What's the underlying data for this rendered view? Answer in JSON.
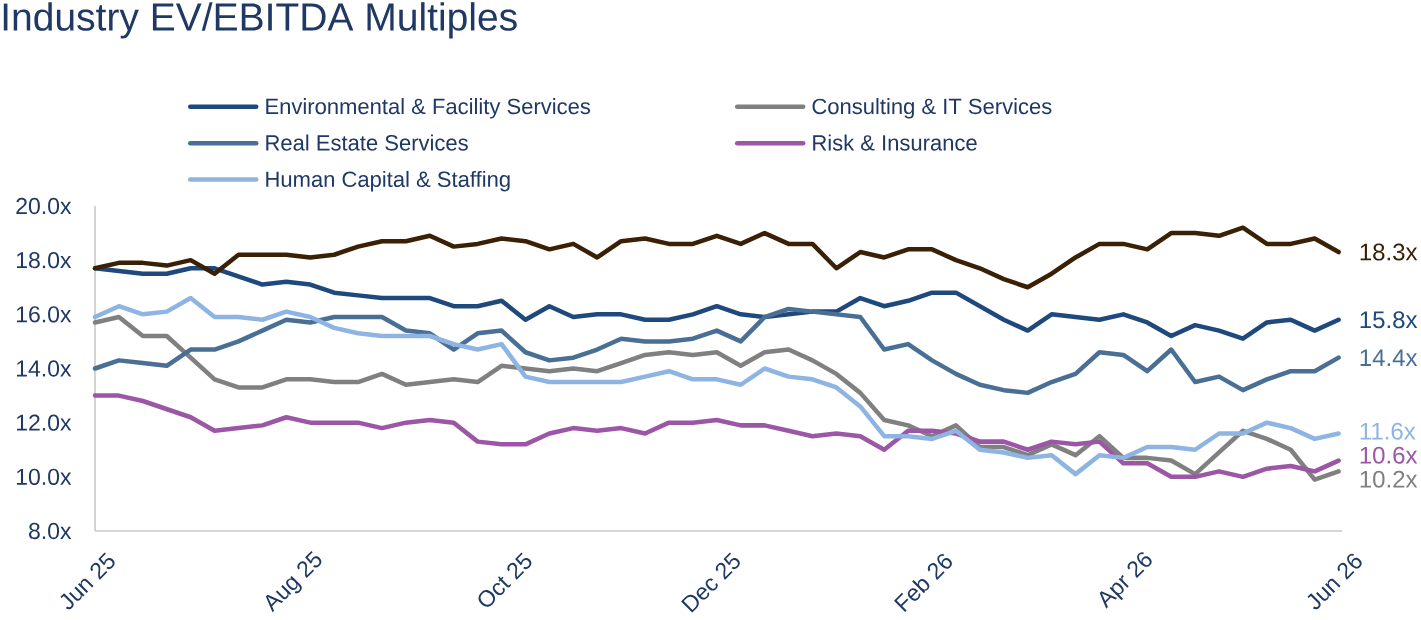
{
  "chart_data": {
    "type": "line",
    "title": "Industry EV/EBITDA Multiples",
    "x": [
      "2025-06-01",
      "2025-06-08",
      "2025-06-15",
      "2025-06-22",
      "2025-06-29",
      "2025-07-06",
      "2025-07-13",
      "2025-07-20",
      "2025-07-27",
      "2025-08-03",
      "2025-08-10",
      "2025-08-17",
      "2025-08-24",
      "2025-08-31",
      "2025-09-07",
      "2025-09-14",
      "2025-09-21",
      "2025-09-28",
      "2025-10-05",
      "2025-10-12",
      "2025-10-19",
      "2025-10-26",
      "2025-11-02",
      "2025-11-09",
      "2025-11-16",
      "2025-11-23",
      "2025-11-30",
      "2025-12-07",
      "2025-12-14",
      "2025-12-21",
      "2025-12-28",
      "2026-01-04",
      "2026-01-11",
      "2026-01-18",
      "2026-01-25",
      "2026-02-01",
      "2026-02-08",
      "2026-02-15",
      "2026-02-22",
      "2026-03-01",
      "2026-03-08",
      "2026-03-15",
      "2026-03-22",
      "2026-03-29",
      "2026-04-05",
      "2026-04-12",
      "2026-04-19",
      "2026-04-26",
      "2026-05-03",
      "2026-05-10",
      "2026-05-17",
      "2026-05-24",
      "2026-05-31"
    ],
    "series": [
      {
        "name": "Environmental & Facility Services",
        "color": "#1F497D",
        "values": [
          17.7,
          17.6,
          17.5,
          17.5,
          17.7,
          17.7,
          17.4,
          17.1,
          17.2,
          17.1,
          16.8,
          16.7,
          16.6,
          16.6,
          16.6,
          16.3,
          16.3,
          16.5,
          15.8,
          16.3,
          15.9,
          16.0,
          16.0,
          15.8,
          15.8,
          16.0,
          16.3,
          16.0,
          15.9,
          16.0,
          16.1,
          16.1,
          16.6,
          16.3,
          16.5,
          16.8,
          16.8,
          16.3,
          15.8,
          15.4,
          16.0,
          15.9,
          15.8,
          16.0,
          15.7,
          15.2,
          15.6,
          15.4,
          15.1,
          15.7,
          15.8,
          15.4,
          15.8
        ],
        "value_labels": [
          null,
          null,
          null,
          null,
          null,
          null,
          null,
          null,
          null,
          null,
          null,
          null,
          null,
          null,
          null,
          null,
          null,
          null,
          null,
          null,
          null,
          null,
          null,
          null,
          null,
          null,
          null,
          null,
          null,
          null,
          null,
          null,
          null,
          null,
          null,
          null,
          null,
          null,
          null,
          null,
          null,
          null,
          null,
          null,
          null,
          null,
          null,
          null,
          null,
          null,
          null,
          null,
          "15.8x"
        ]
      },
      {
        "name": "Consulting & IT Services",
        "color": "#808080",
        "values": [
          15.7,
          15.9,
          15.2,
          15.2,
          14.4,
          13.6,
          13.3,
          13.3,
          13.6,
          13.6,
          13.5,
          13.5,
          13.8,
          13.4,
          13.5,
          13.6,
          13.5,
          14.1,
          14.0,
          13.9,
          14.0,
          13.9,
          14.2,
          14.5,
          14.6,
          14.5,
          14.6,
          14.1,
          14.6,
          14.7,
          14.3,
          13.8,
          13.1,
          12.1,
          11.9,
          11.5,
          11.9,
          11.1,
          11.1,
          10.8,
          11.2,
          10.8,
          11.5,
          10.7,
          10.7,
          10.6,
          10.1,
          10.9,
          11.7,
          11.4,
          11.0,
          9.9,
          10.2
        ],
        "value_labels": [
          null,
          null,
          null,
          null,
          null,
          null,
          null,
          null,
          null,
          null,
          null,
          null,
          null,
          null,
          null,
          null,
          null,
          null,
          null,
          null,
          null,
          null,
          null,
          null,
          null,
          null,
          null,
          null,
          null,
          null,
          null,
          null,
          null,
          null,
          null,
          null,
          null,
          null,
          null,
          null,
          null,
          null,
          null,
          null,
          null,
          null,
          null,
          null,
          null,
          null,
          null,
          null,
          "10.2x"
        ]
      },
      {
        "name": "Real Estate Services",
        "color": "#4A6F94",
        "values": [
          14.0,
          14.3,
          14.2,
          14.1,
          14.7,
          14.7,
          15.0,
          15.4,
          15.8,
          15.7,
          15.9,
          15.9,
          15.9,
          15.4,
          15.3,
          14.7,
          15.3,
          15.4,
          14.6,
          14.3,
          14.4,
          14.7,
          15.1,
          15.0,
          15.0,
          15.1,
          15.4,
          15.0,
          15.9,
          16.2,
          16.1,
          16.0,
          15.9,
          14.7,
          14.9,
          14.3,
          13.8,
          13.4,
          13.2,
          13.1,
          13.5,
          13.8,
          14.6,
          14.5,
          13.9,
          14.7,
          13.5,
          13.7,
          13.2,
          13.6,
          13.9,
          13.9,
          14.4
        ],
        "value_labels": [
          null,
          null,
          null,
          null,
          null,
          null,
          null,
          null,
          null,
          null,
          null,
          null,
          null,
          null,
          null,
          null,
          null,
          null,
          null,
          null,
          null,
          null,
          null,
          null,
          null,
          null,
          null,
          null,
          null,
          null,
          null,
          null,
          null,
          null,
          null,
          null,
          null,
          null,
          null,
          null,
          null,
          null,
          null,
          null,
          null,
          null,
          null,
          null,
          null,
          null,
          null,
          null,
          "14.4x"
        ]
      },
      {
        "name": "Risk & Insurance",
        "color": "#9B57A5",
        "values": [
          13.0,
          13.0,
          12.8,
          12.5,
          12.2,
          11.7,
          11.8,
          11.9,
          12.2,
          12.0,
          12.0,
          12.0,
          11.8,
          12.0,
          12.1,
          12.0,
          11.3,
          11.2,
          11.2,
          11.6,
          11.8,
          11.7,
          11.8,
          11.6,
          12.0,
          12.0,
          12.1,
          11.9,
          11.9,
          11.7,
          11.5,
          11.6,
          11.5,
          11.0,
          11.7,
          11.7,
          11.6,
          11.3,
          11.3,
          11.0,
          11.3,
          11.2,
          11.3,
          10.5,
          10.5,
          10.0,
          10.0,
          10.2,
          10.0,
          10.3,
          10.4,
          10.2,
          10.6
        ],
        "value_labels": [
          null,
          null,
          null,
          null,
          null,
          null,
          null,
          null,
          null,
          null,
          null,
          null,
          null,
          null,
          null,
          null,
          null,
          null,
          null,
          null,
          null,
          null,
          null,
          null,
          null,
          null,
          null,
          null,
          null,
          null,
          null,
          null,
          null,
          null,
          null,
          null,
          null,
          null,
          null,
          null,
          null,
          null,
          null,
          null,
          null,
          null,
          null,
          null,
          null,
          null,
          null,
          null,
          "10.6x"
        ]
      },
      {
        "name": "Human Capital & Staffing",
        "color": "#8EB4E3",
        "values": [
          15.9,
          16.3,
          16.0,
          16.1,
          16.6,
          15.9,
          15.9,
          15.8,
          16.1,
          15.9,
          15.5,
          15.3,
          15.2,
          15.2,
          15.2,
          14.9,
          14.7,
          14.9,
          13.7,
          13.5,
          13.5,
          13.5,
          13.5,
          13.7,
          13.9,
          13.6,
          13.6,
          13.4,
          14.0,
          13.7,
          13.6,
          13.3,
          12.6,
          11.5,
          11.5,
          11.4,
          11.7,
          11.0,
          10.9,
          10.7,
          10.8,
          10.1,
          10.8,
          10.7,
          11.1,
          11.1,
          11.0,
          11.6,
          11.6,
          12.0,
          11.8,
          11.4,
          11.6
        ],
        "value_labels": [
          null,
          null,
          null,
          null,
          null,
          null,
          null,
          null,
          null,
          null,
          null,
          null,
          null,
          null,
          null,
          null,
          null,
          null,
          null,
          null,
          null,
          null,
          null,
          null,
          null,
          null,
          null,
          null,
          null,
          null,
          null,
          null,
          null,
          null,
          null,
          null,
          null,
          null,
          null,
          null,
          null,
          null,
          null,
          null,
          null,
          null,
          null,
          null,
          null,
          null,
          null,
          null,
          "11.6x"
        ]
      },
      {
        "color": "#3A2005",
        "values": [
          17.7,
          17.9,
          17.9,
          17.8,
          18.0,
          17.5,
          18.2,
          18.2,
          18.2,
          18.1,
          18.2,
          18.5,
          18.7,
          18.7,
          18.9,
          18.5,
          18.6,
          18.8,
          18.7,
          18.4,
          18.6,
          18.1,
          18.7,
          18.8,
          18.6,
          18.6,
          18.9,
          18.6,
          19.0,
          18.6,
          18.6,
          17.7,
          18.3,
          18.1,
          18.4,
          18.4,
          18.0,
          17.7,
          17.3,
          17.0,
          17.5,
          18.1,
          18.6,
          18.6,
          18.4,
          19.0,
          19.0,
          18.9,
          19.2,
          18.6,
          18.6,
          18.8,
          18.3
        ],
        "value_labels": [
          null,
          null,
          null,
          null,
          null,
          null,
          null,
          null,
          null,
          null,
          null,
          null,
          null,
          null,
          null,
          null,
          null,
          null,
          null,
          null,
          null,
          null,
          null,
          null,
          null,
          null,
          null,
          null,
          null,
          null,
          null,
          null,
          null,
          null,
          null,
          null,
          null,
          null,
          null,
          null,
          null,
          null,
          null,
          null,
          null,
          null,
          null,
          null,
          null,
          null,
          null,
          null,
          "18.3x"
        ]
      }
    ],
    "xlim": [
      "2025-06-01",
      "2026-06-01"
    ],
    "xticks": [
      {
        "value": "2025-06-01",
        "label": "Jun 25"
      },
      {
        "value": "2025-08-01",
        "label": "Aug 25"
      },
      {
        "value": "2025-10-01",
        "label": "Oct 25"
      },
      {
        "value": "2025-12-01",
        "label": "Dec 25"
      },
      {
        "value": "2026-02-01",
        "label": "Feb 26"
      },
      {
        "value": "2026-04-01",
        "label": "Apr 26"
      },
      {
        "value": "2026-06-01",
        "label": "Jun 26"
      }
    ],
    "ylim": [
      8,
      20
    ],
    "yticks": [
      {
        "value": 8,
        "label": "8.0x"
      },
      {
        "value": 10,
        "label": "10.0x"
      },
      {
        "value": 12,
        "label": "12.0x"
      },
      {
        "value": 14,
        "label": "14.0x"
      },
      {
        "value": 16,
        "label": "16.0x"
      },
      {
        "value": 18,
        "label": "18.0x"
      },
      {
        "value": 20,
        "label": "20.0x"
      }
    ],
    "legend": "top",
    "marker": "none",
    "line_style": "solid"
  }
}
